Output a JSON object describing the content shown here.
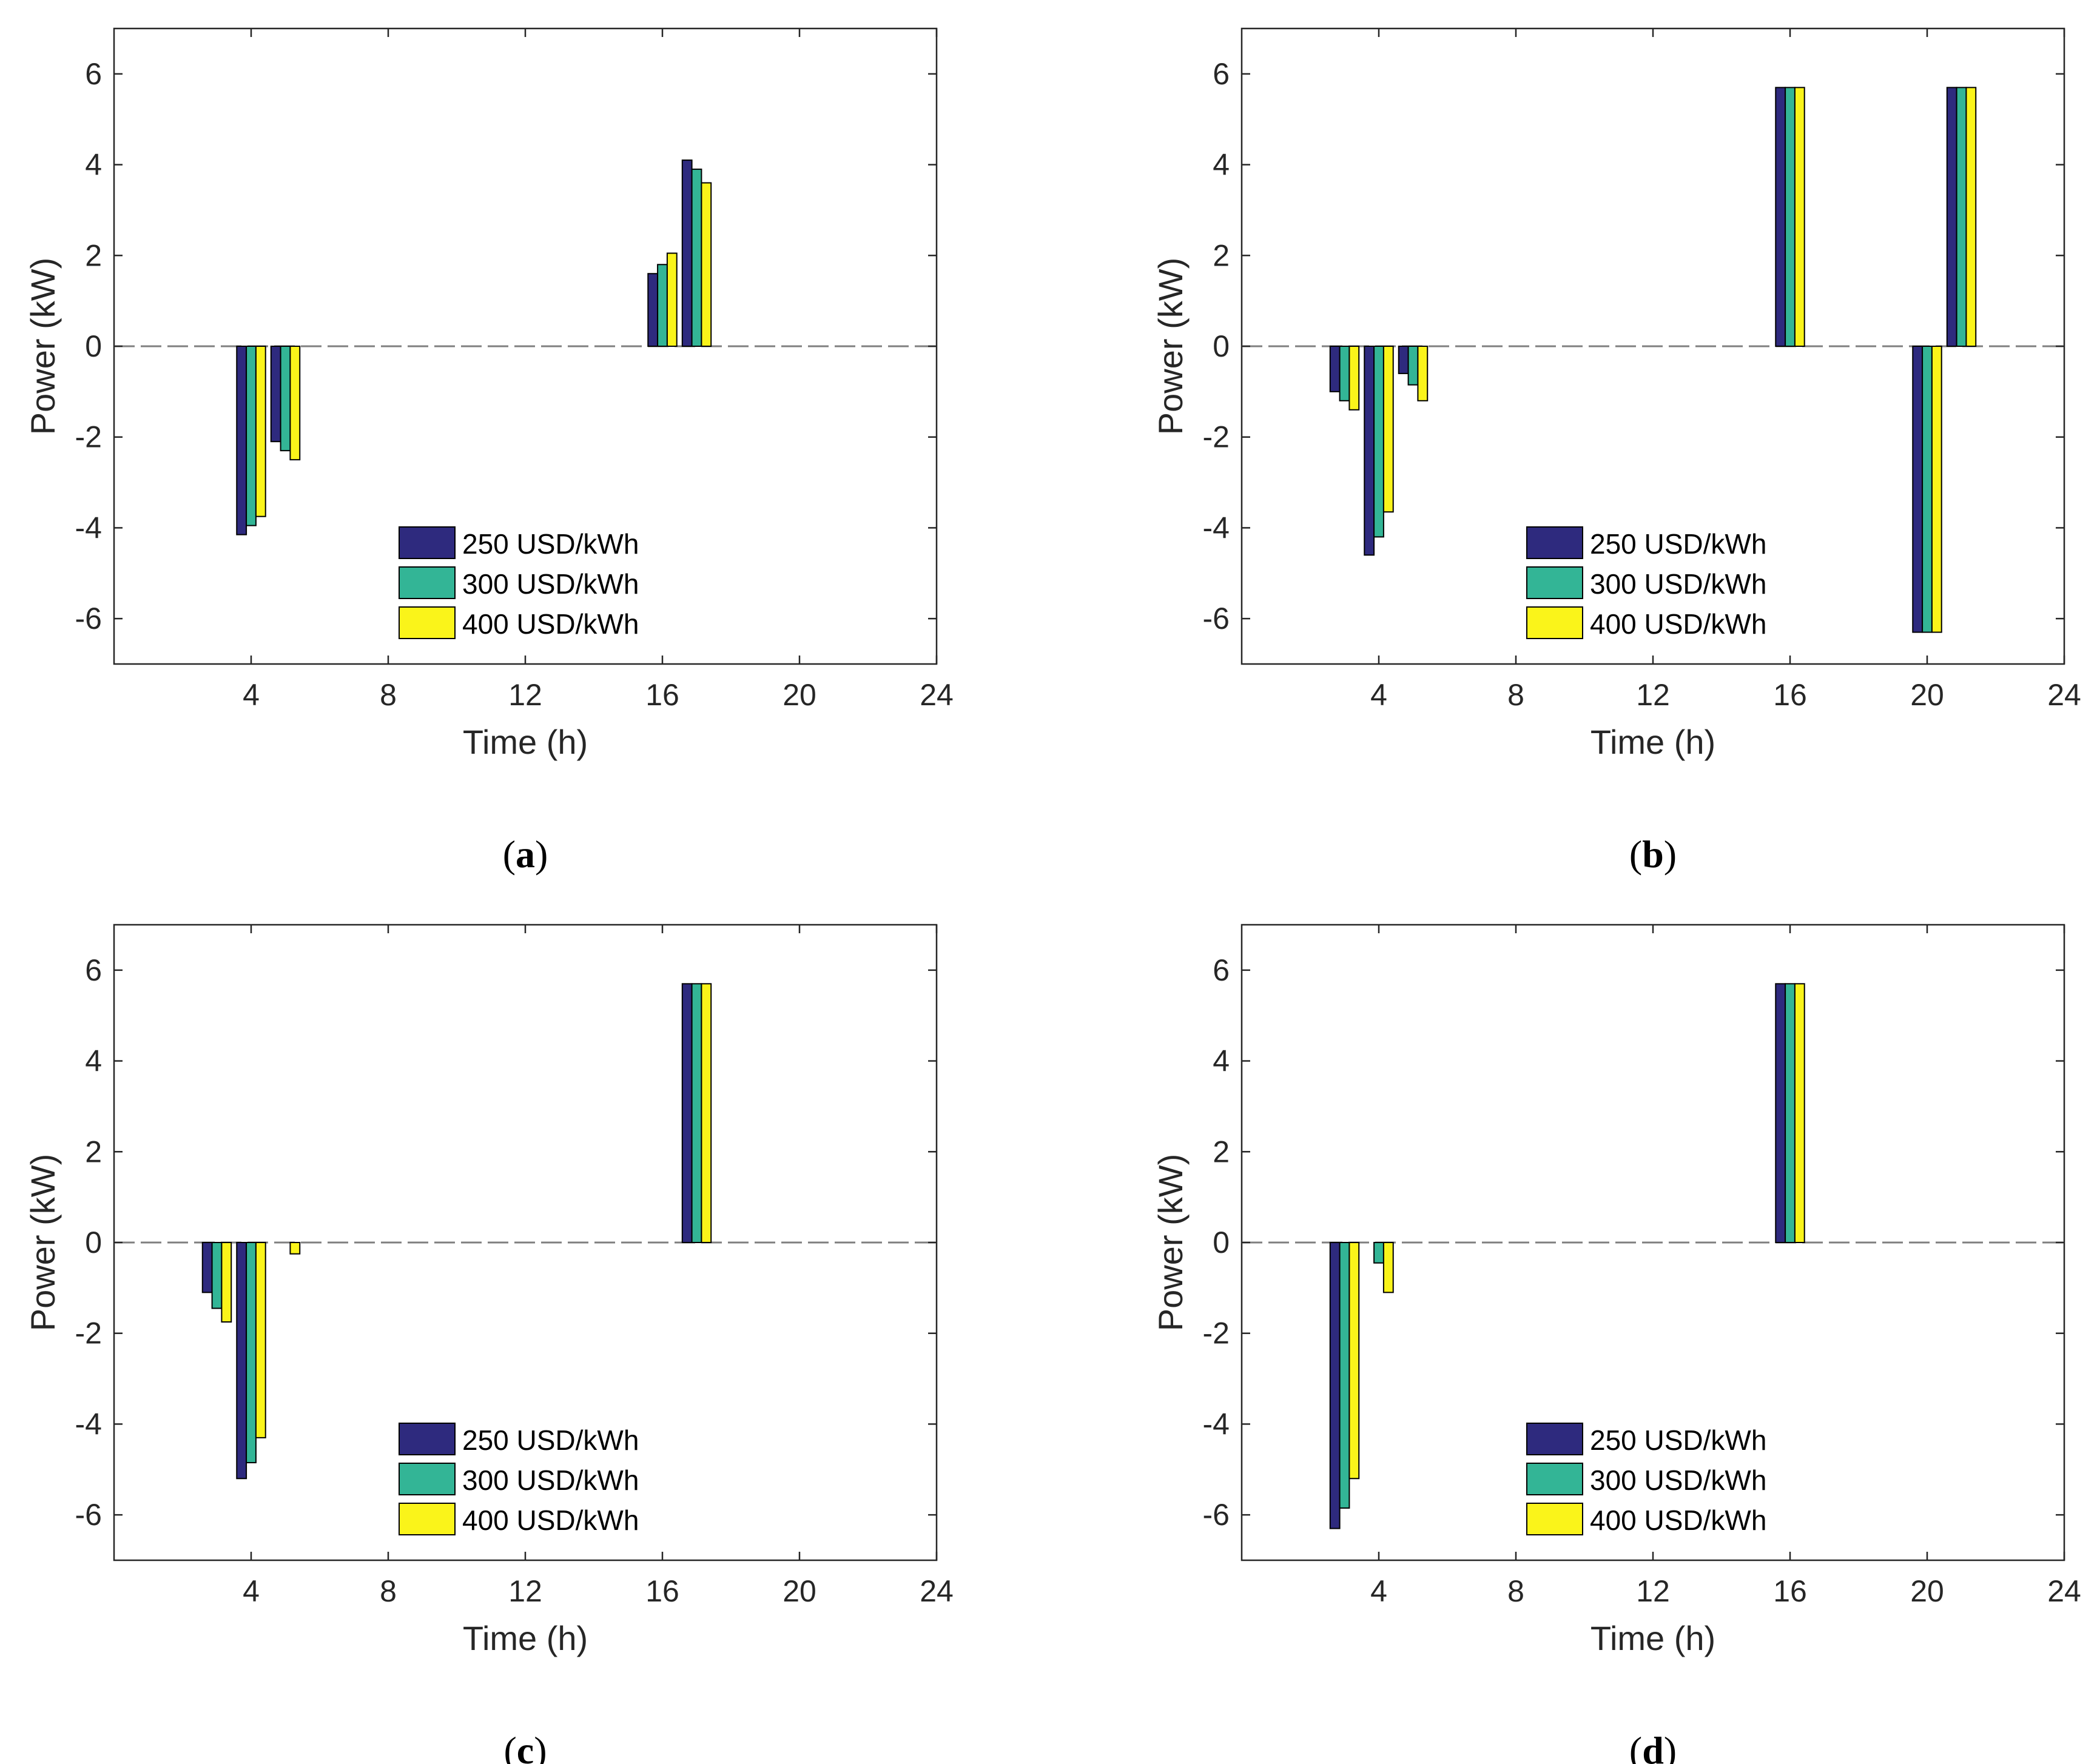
{
  "colors": {
    "s250": "#2e2a7e",
    "s300": "#33b596",
    "s400": "#faf41a",
    "edge": "#000000",
    "zeroline": "#7f7f7f",
    "axis": "#262626"
  },
  "chart_data": [
    {
      "type": "bar",
      "caption": "a",
      "xlabel": "Time (h)",
      "ylabel": "Power (kW)",
      "xlim": [
        0,
        24
      ],
      "ylim": [
        -7,
        7
      ],
      "xticks": [
        4,
        8,
        12,
        16,
        20,
        24
      ],
      "yticks": [
        -6,
        -4,
        -2,
        0,
        2,
        4,
        6
      ],
      "legend_position": "bottom-center",
      "categories": [
        4,
        5,
        16,
        17
      ],
      "series": [
        {
          "name": "250 USD/kWh",
          "values": [
            -4.15,
            -2.1,
            1.6,
            4.1
          ]
        },
        {
          "name": "300 USD/kWh",
          "values": [
            -3.95,
            -2.3,
            1.8,
            3.9
          ]
        },
        {
          "name": "400 USD/kWh",
          "values": [
            -3.75,
            -2.5,
            2.05,
            3.6
          ]
        }
      ]
    },
    {
      "type": "bar",
      "caption": "b",
      "xlabel": "Time (h)",
      "ylabel": "Power (kW)",
      "xlim": [
        0,
        24
      ],
      "ylim": [
        -7,
        7
      ],
      "xticks": [
        4,
        8,
        12,
        16,
        20,
        24
      ],
      "yticks": [
        -6,
        -4,
        -2,
        0,
        2,
        4,
        6
      ],
      "legend_position": "bottom-center",
      "categories": [
        3,
        4,
        5,
        16,
        20,
        21
      ],
      "series": [
        {
          "name": "250 USD/kWh",
          "values": [
            -1.0,
            -4.6,
            -0.6,
            5.7,
            -6.3,
            5.7
          ]
        },
        {
          "name": "300 USD/kWh",
          "values": [
            -1.2,
            -4.2,
            -0.85,
            5.7,
            -6.3,
            5.7
          ]
        },
        {
          "name": "400 USD/kWh",
          "values": [
            -1.4,
            -3.65,
            -1.2,
            5.7,
            -6.3,
            5.7
          ]
        }
      ]
    },
    {
      "type": "bar",
      "caption": "c",
      "xlabel": "Time (h)",
      "ylabel": "Power (kW)",
      "xlim": [
        0,
        24
      ],
      "ylim": [
        -7,
        7
      ],
      "xticks": [
        4,
        8,
        12,
        16,
        20,
        24
      ],
      "yticks": [
        -6,
        -4,
        -2,
        0,
        2,
        4,
        6
      ],
      "legend_position": "bottom-center",
      "categories": [
        3,
        4,
        5,
        17
      ],
      "series": [
        {
          "name": "250 USD/kWh",
          "values": [
            -1.1,
            -5.2,
            0,
            5.7
          ]
        },
        {
          "name": "300 USD/kWh",
          "values": [
            -1.45,
            -4.85,
            0,
            5.7
          ]
        },
        {
          "name": "400 USD/kWh",
          "values": [
            -1.75,
            -4.3,
            -0.25,
            5.7
          ]
        }
      ]
    },
    {
      "type": "bar",
      "caption": "d",
      "xlabel": "Time (h)",
      "ylabel": "Power (kW)",
      "xlim": [
        0,
        24
      ],
      "ylim": [
        -7,
        7
      ],
      "xticks": [
        4,
        8,
        12,
        16,
        20,
        24
      ],
      "yticks": [
        -6,
        -4,
        -2,
        0,
        2,
        4,
        6
      ],
      "legend_position": "bottom-center",
      "categories": [
        3,
        4,
        16
      ],
      "series": [
        {
          "name": "250 USD/kWh",
          "values": [
            -6.3,
            0,
            5.7
          ]
        },
        {
          "name": "300 USD/kWh",
          "values": [
            -5.85,
            -0.45,
            5.7
          ]
        },
        {
          "name": "400 USD/kWh",
          "values": [
            -5.2,
            -1.1,
            5.7
          ]
        }
      ]
    }
  ]
}
